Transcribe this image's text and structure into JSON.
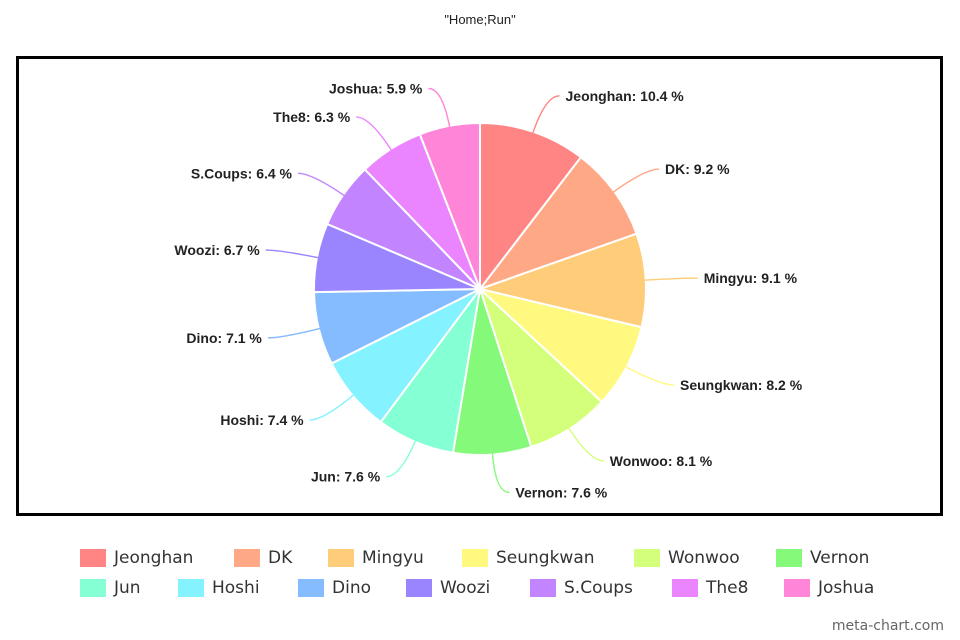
{
  "chart_data": {
    "type": "pie",
    "title": "\"Home;Run\"",
    "label_suffix": " %",
    "legend_position": "bottom",
    "slices": [
      {
        "name": "Jeonghan",
        "value": 10.4,
        "color": "#ff8585"
      },
      {
        "name": "DK",
        "value": 9.2,
        "color": "#ffa885"
      },
      {
        "name": "Mingyu",
        "value": 9.1,
        "color": "#ffcc7a"
      },
      {
        "name": "Seungkwan",
        "value": 8.2,
        "color": "#fff97f"
      },
      {
        "name": "Wonwoo",
        "value": 8.1,
        "color": "#d4ff7a"
      },
      {
        "name": "Vernon",
        "value": 7.6,
        "color": "#85f97a"
      },
      {
        "name": "Jun",
        "value": 7.6,
        "color": "#85ffd4"
      },
      {
        "name": "Hoshi",
        "value": 7.4,
        "color": "#85f2ff"
      },
      {
        "name": "Dino",
        "value": 7.1,
        "color": "#85bbff"
      },
      {
        "name": "Woozi",
        "value": 6.7,
        "color": "#9a85ff"
      },
      {
        "name": "S.Coups",
        "value": 6.4,
        "color": "#c285ff"
      },
      {
        "name": "The8",
        "value": 6.3,
        "color": "#eb85ff"
      },
      {
        "name": "Joshua",
        "value": 5.9,
        "color": "#ff85d8"
      }
    ]
  },
  "watermark": "meta-chart.com"
}
